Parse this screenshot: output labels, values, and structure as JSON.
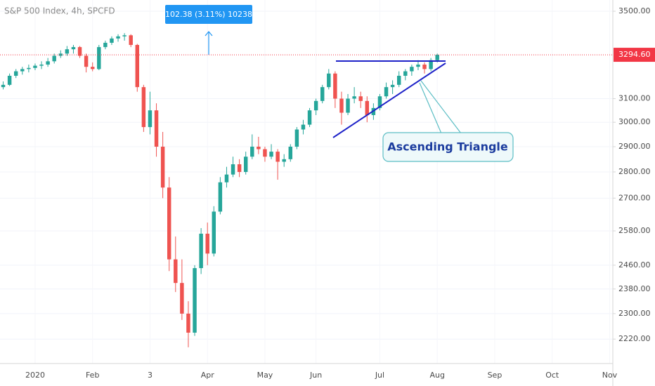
{
  "header": {
    "title": "S&P 500 Index, 4h, SPCFD"
  },
  "chart_data": {
    "type": "candlestick",
    "categories": [
      null,
      null,
      null,
      null,
      null,
      "2020",
      null,
      null,
      null,
      null,
      null,
      null,
      null,
      null,
      "Feb",
      null,
      null,
      null,
      null,
      null,
      null,
      null,
      null,
      "3",
      null,
      null,
      null,
      null,
      null,
      null,
      null,
      null,
      "Apr",
      null,
      null,
      null,
      null,
      null,
      null,
      null,
      null,
      "May",
      null,
      null,
      null,
      null,
      null,
      null,
      null,
      "Jun",
      null,
      null,
      null,
      null,
      null,
      null,
      null,
      null,
      null,
      "Jul",
      null,
      null,
      null,
      null,
      null,
      null,
      null,
      null,
      "Aug",
      null,
      null,
      null,
      null,
      null,
      null,
      null,
      null,
      "Sep",
      null,
      null,
      null,
      null,
      null,
      null,
      null,
      null,
      "Oct",
      null,
      null,
      null,
      null,
      null,
      null,
      null,
      null,
      "Nov"
    ],
    "open": [
      3150,
      3160,
      3200,
      3220,
      3230,
      3235,
      3245,
      3250,
      3265,
      3290,
      3300,
      3320,
      3330,
      3290,
      3240,
      3230,
      3330,
      3350,
      3370,
      3380,
      3385,
      3340,
      3150,
      2980,
      3050,
      2900,
      2740,
      2480,
      2400,
      2300,
      2240,
      2450,
      2570,
      2500,
      2650,
      2760,
      2790,
      2830,
      2800,
      2860,
      2900,
      2890,
      2860,
      2880,
      2840,
      2850,
      2900,
      2970,
      2990,
      3050,
      3090,
      3150,
      3210,
      3100,
      3040,
      3100,
      3110,
      3090,
      3030,
      3060,
      3110,
      3150,
      3160,
      3200,
      3220,
      3240,
      3250,
      3230,
      3270,
      null,
      null,
      null,
      null,
      null,
      null,
      null,
      null,
      null,
      null,
      null,
      null,
      null,
      null,
      null,
      null,
      null,
      null,
      null,
      null,
      null,
      null,
      null,
      null,
      null,
      null,
      null
    ],
    "high": [
      3175,
      3210,
      3230,
      3240,
      3250,
      3255,
      3265,
      3280,
      3300,
      3315,
      3335,
      3340,
      3335,
      3300,
      3260,
      3340,
      3360,
      3380,
      3390,
      3395,
      3390,
      3345,
      3160,
      3130,
      3080,
      2960,
      2780,
      2560,
      2480,
      2340,
      2460,
      2590,
      2610,
      2670,
      2780,
      2820,
      2860,
      2850,
      2880,
      2950,
      2940,
      2900,
      2910,
      2890,
      2870,
      2910,
      2980,
      3010,
      3060,
      3100,
      3160,
      3230,
      3220,
      3130,
      3120,
      3150,
      3130,
      3110,
      3080,
      3120,
      3170,
      3180,
      3220,
      3230,
      3250,
      3270,
      3260,
      3280,
      3300,
      null,
      null,
      null,
      null,
      null,
      null,
      null,
      null,
      null,
      null,
      null,
      null,
      null,
      null,
      null,
      null,
      null,
      null,
      null,
      null,
      null,
      null,
      null,
      null,
      null,
      null,
      null
    ],
    "low": [
      3140,
      3155,
      3190,
      3205,
      3215,
      3225,
      3230,
      3240,
      3255,
      3280,
      3290,
      3300,
      3280,
      3215,
      3220,
      3225,
      3320,
      3340,
      3355,
      3360,
      3330,
      3130,
      2960,
      2950,
      2860,
      2700,
      2440,
      2370,
      2280,
      2195,
      2230,
      2430,
      2460,
      2490,
      2640,
      2740,
      2780,
      2780,
      2790,
      2850,
      2870,
      2840,
      2850,
      2770,
      2820,
      2840,
      2890,
      2950,
      2980,
      3030,
      3080,
      3140,
      3060,
      2990,
      3030,
      3080,
      3060,
      3000,
      3010,
      3050,
      3100,
      3120,
      3150,
      3180,
      3200,
      3225,
      3210,
      3220,
      3260,
      null,
      null,
      null,
      null,
      null,
      null,
      null,
      null,
      null,
      null,
      null,
      null,
      null,
      null,
      null,
      null,
      null,
      null,
      null,
      null,
      null,
      null,
      null,
      null,
      null,
      null,
      null
    ],
    "close": [
      3160,
      3200,
      3220,
      3230,
      3235,
      3245,
      3250,
      3265,
      3290,
      3300,
      3320,
      3330,
      3290,
      3240,
      3230,
      3330,
      3350,
      3370,
      3380,
      3385,
      3340,
      3150,
      2980,
      3050,
      2900,
      2740,
      2480,
      2400,
      2300,
      2240,
      2450,
      2570,
      2500,
      2650,
      2760,
      2790,
      2830,
      2800,
      2860,
      2900,
      2890,
      2860,
      2880,
      2840,
      2850,
      2900,
      2970,
      2990,
      3050,
      3090,
      3150,
      3210,
      3100,
      3040,
      3100,
      3110,
      3090,
      3030,
      3060,
      3110,
      3150,
      3160,
      3200,
      3220,
      3240,
      3250,
      3230,
      3270,
      3294.6,
      null,
      null,
      null,
      null,
      null,
      null,
      null,
      null,
      null,
      null,
      null,
      null,
      null,
      null,
      null,
      null,
      null,
      null,
      null,
      null,
      null,
      null,
      null,
      null,
      null,
      null,
      null
    ],
    "up_color": "#26a69a",
    "down_color": "#ef5350",
    "ylim": [
      2146,
      3555
    ],
    "log_scale": true,
    "grid": true,
    "yticks": [
      {
        "value": 3500,
        "label": "3500.00"
      },
      {
        "value": 3100,
        "label": "3100.00"
      },
      {
        "value": 3000,
        "label": "3000.00"
      },
      {
        "value": 2900,
        "label": "2900.00"
      },
      {
        "value": 2800,
        "label": "2800.00"
      },
      {
        "value": 2700,
        "label": "2700.00"
      },
      {
        "value": 2580,
        "label": "2580.00"
      },
      {
        "value": 2460,
        "label": "2460.00"
      },
      {
        "value": 2380,
        "label": "2380.00"
      },
      {
        "value": 2300,
        "label": "2300.00"
      },
      {
        "value": 2220,
        "label": "2220.00"
      }
    ],
    "last_price": {
      "value": 3294.6,
      "label": "3294.60"
    },
    "price_line_color": "#f23645",
    "annotation": "Ascending Triangle",
    "measure_label": "102.38 (3.11%) 10238"
  }
}
